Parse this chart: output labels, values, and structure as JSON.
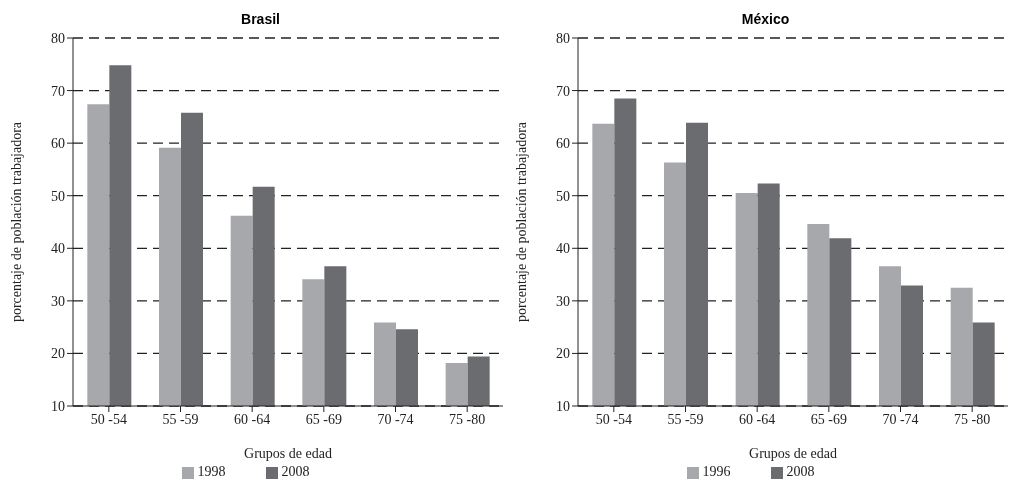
{
  "chart_data": [
    {
      "type": "bar",
      "title": "Brasil",
      "xlabel": "Grupos de edad",
      "ylabel": "porcentaje de población trabajadora",
      "categories": [
        "50 -54",
        "55 -59",
        "60 -64",
        "65 -69",
        "70 -74",
        "75 -80"
      ],
      "series": [
        {
          "name": "1998",
          "color": "#a7a8ab",
          "values": [
            67.4,
            59.1,
            46.2,
            34.1,
            25.9,
            18.2
          ]
        },
        {
          "name": "2008",
          "color": "#6b6c70",
          "values": [
            74.8,
            65.8,
            51.7,
            36.6,
            24.6,
            19.4
          ]
        }
      ],
      "ylim": [
        10,
        80
      ],
      "yticks": [
        10,
        20,
        30,
        40,
        50,
        60,
        70,
        80
      ],
      "grid": "y",
      "legend": "bottom"
    },
    {
      "type": "bar",
      "title": "México",
      "xlabel": "Grupos de edad",
      "ylabel": "porcentaje de población trabajadora",
      "categories": [
        "50 -54",
        "55 -59",
        "60 -64",
        "65 -69",
        "70 -74",
        "75 -80"
      ],
      "series": [
        {
          "name": "1996",
          "color": "#a7a8ab",
          "values": [
            63.7,
            56.3,
            50.5,
            44.6,
            36.6,
            32.5
          ]
        },
        {
          "name": "2008",
          "color": "#6b6c70",
          "values": [
            68.5,
            63.9,
            52.3,
            41.9,
            32.9,
            25.9
          ]
        }
      ],
      "ylim": [
        10,
        80
      ],
      "yticks": [
        10,
        20,
        30,
        40,
        50,
        60,
        70,
        80
      ],
      "grid": "y",
      "legend": "bottom"
    }
  ]
}
